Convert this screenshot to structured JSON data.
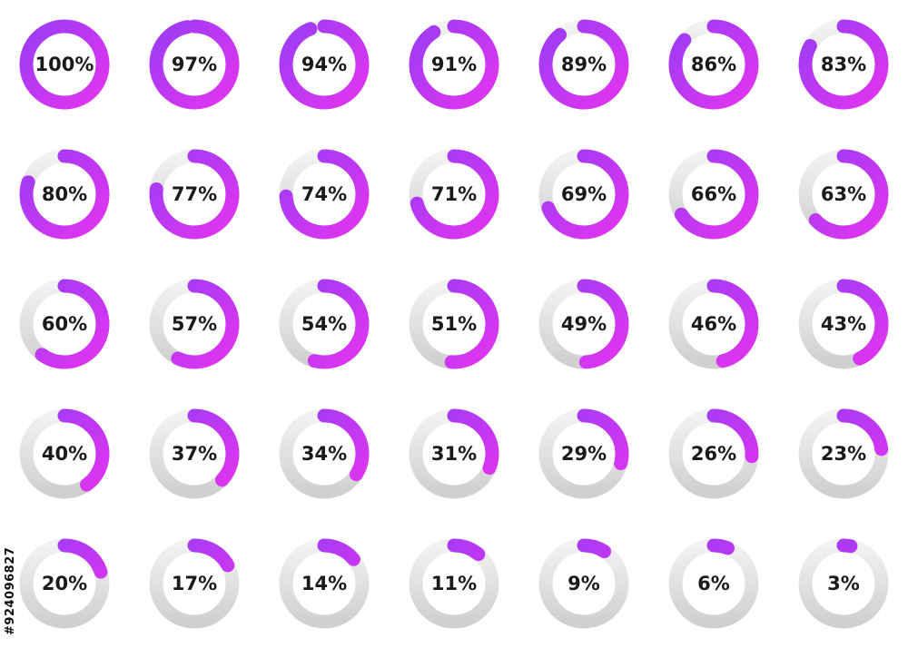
{
  "progress_rings": {
    "values": [
      100,
      97,
      94,
      91,
      89,
      86,
      83,
      80,
      77,
      74,
      71,
      69,
      66,
      63,
      60,
      57,
      54,
      51,
      49,
      46,
      43,
      40,
      37,
      34,
      31,
      29,
      26,
      23,
      20,
      17,
      14,
      11,
      9,
      6,
      3
    ],
    "labels": [
      "100%",
      "97%",
      "94%",
      "91%",
      "89%",
      "86%",
      "83%",
      "80%",
      "77%",
      "74%",
      "71%",
      "69%",
      "66%",
      "63%",
      "60%",
      "57%",
      "54%",
      "51%",
      "49%",
      "46%",
      "43%",
      "40%",
      "37%",
      "34%",
      "31%",
      "29%",
      "26%",
      "23%",
      "20%",
      "17%",
      "14%",
      "11%",
      "9%",
      "6%",
      "3%"
    ],
    "columns": 7,
    "rows": 5
  },
  "colors": {
    "track_light": "#f2f2f2",
    "track_dark": "#d0d0d0",
    "fill_violet": "#9b3cf5",
    "fill_magenta": "#e334f0",
    "label": "#1a1a1a"
  },
  "watermark_id": "#924096827"
}
